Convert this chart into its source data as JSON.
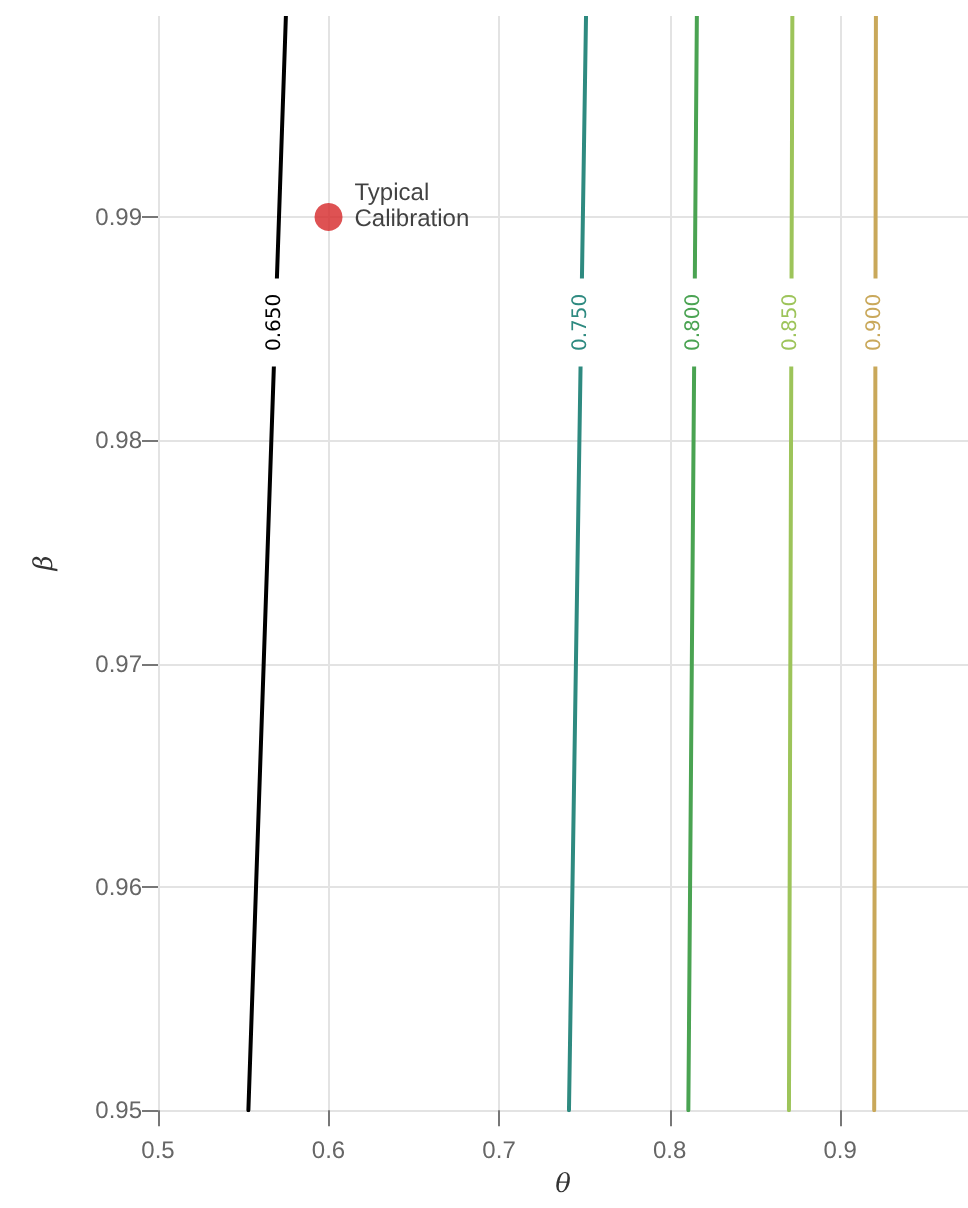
{
  "chart_data": {
    "type": "line",
    "xlabel": "θ",
    "ylabel": "β",
    "xlim": [
      0.5,
      0.975
    ],
    "ylim": [
      0.95,
      0.999
    ],
    "xticks": [
      0.5,
      0.6,
      0.7,
      0.8,
      0.9
    ],
    "yticks": [
      0.95,
      0.96,
      0.97,
      0.98,
      0.99
    ],
    "grid": true,
    "legend": false,
    "marker": "none",
    "line_style": "solid",
    "series": [
      {
        "name": "0.650",
        "color": "#000000",
        "x": [
          0.553,
          0.575
        ],
        "values": [
          0.95,
          0.999
        ]
      },
      {
        "name": "0.750",
        "color": "#2e8a80",
        "x": [
          0.741,
          0.751
        ],
        "values": [
          0.95,
          0.999
        ]
      },
      {
        "name": "0.800",
        "color": "#4aa352",
        "x": [
          0.811,
          0.816
        ],
        "values": [
          0.95,
          0.999
        ]
      },
      {
        "name": "0.850",
        "color": "#9dc45a",
        "x": [
          0.87,
          0.872
        ],
        "values": [
          0.95,
          0.999
        ]
      },
      {
        "name": "0.900",
        "color": "#c9a85a",
        "x": [
          0.92,
          0.921
        ],
        "values": [
          0.95,
          0.999
        ]
      },
      {
        "type": "scatter",
        "color": "#d62728",
        "marker": "circle",
        "x": [
          0.6
        ],
        "values": [
          0.99
        ]
      }
    ],
    "annotations": [
      {
        "text": "Typical\nCalibration",
        "x": 0.6,
        "y": 0.99
      }
    ]
  }
}
